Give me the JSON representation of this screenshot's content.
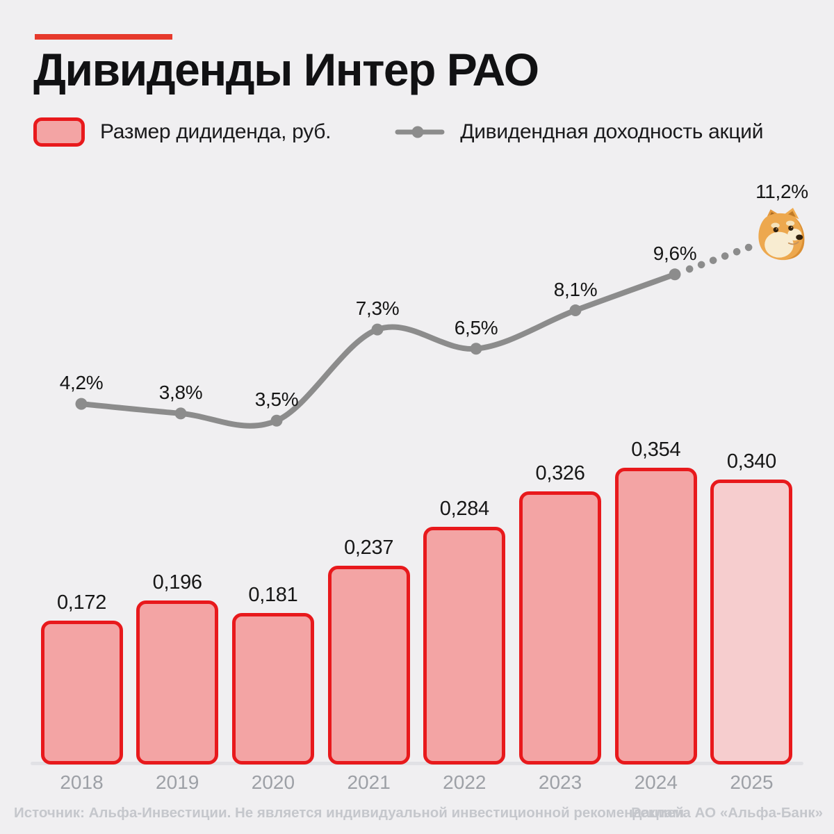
{
  "header": {
    "title": "Дивиденды Интер РАО"
  },
  "legend": {
    "bar_label": "Размер дидиденда, руб.",
    "line_label": "Дивидендная доходность акций"
  },
  "footer": {
    "source": "Источник: Альфа-Инвестиции. Не является индивидуальной инвестиционной рекомендацией",
    "ad": "Реклама АО «Альфа-Банк»"
  },
  "colors": {
    "background": "#f0eff1",
    "accent": "#e6392c",
    "bar_fill": "#f3a4a4",
    "bar_fill_forecast": "#f6cdce",
    "bar_border": "#e8191c",
    "line": "#8c8c8c",
    "value_text": "#161616",
    "axis_text": "#9da0a6",
    "footer_text": "#c5c7cc"
  },
  "chart_data": {
    "type": "bar",
    "title": "Дивиденды Интер РАО",
    "categories": [
      "2018",
      "2019",
      "2020",
      "2021",
      "2022",
      "2023",
      "2024",
      "2025"
    ],
    "series": [
      {
        "name": "Размер дидиденда, руб.",
        "type": "bar",
        "values": [
          0.172,
          0.196,
          0.181,
          0.237,
          0.284,
          0.326,
          0.354,
          0.34
        ],
        "labels": [
          "0,172",
          "0,196",
          "0,181",
          "0,237",
          "0,284",
          "0,326",
          "0,354",
          "0,340"
        ],
        "last_bar_is_forecast": true
      },
      {
        "name": "Дивидендная доходность акций",
        "type": "line",
        "values": [
          4.2,
          3.8,
          3.5,
          7.3,
          6.5,
          8.1,
          9.6,
          11.2
        ],
        "labels": [
          "4,2%",
          "3,8%",
          "3,5%",
          "7,3%",
          "6,5%",
          "8,1%",
          "9,6%",
          "11,2%"
        ],
        "last_point_marker": "doge-icon",
        "last_segment_style": "dotted"
      }
    ],
    "xlabel": "",
    "ylabel": "",
    "grid": false,
    "legend_position": "top"
  }
}
